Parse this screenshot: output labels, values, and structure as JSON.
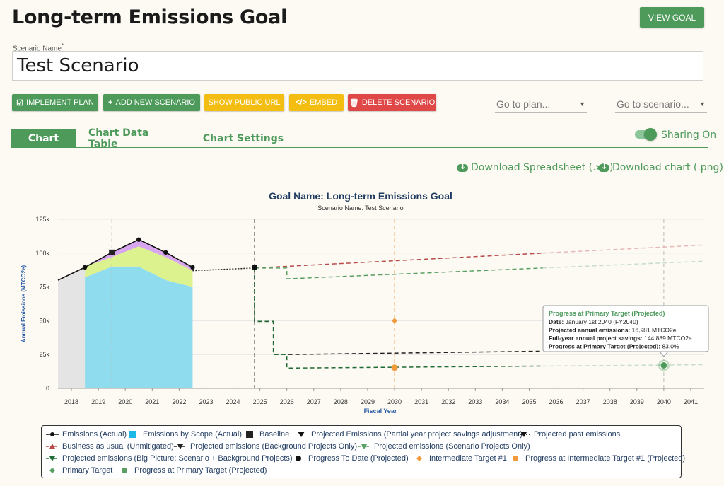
{
  "page": {
    "title": "Long-term Emissions Goal",
    "view_goal_label": "VIEW GOAL"
  },
  "scenario": {
    "name_label": "Scenario Name",
    "required_mark": "*",
    "name_value": "Test Scenario"
  },
  "actions": {
    "implement_plan": "IMPLEMENT PLAN",
    "add_scenario": "ADD NEW SCENARIO",
    "show_public_url": "SHOW PUBLIC URL",
    "embed": "EMBED",
    "delete_scenario": "DELETE SCENARIO"
  },
  "selects": {
    "plan_placeholder": "Go to plan...",
    "scenario_placeholder": "Go to scenario..."
  },
  "tabs": [
    "Chart",
    "Chart Data Table",
    "Chart Settings"
  ],
  "sharing": {
    "label": "Sharing On",
    "on": true
  },
  "downloads": {
    "spreadsheet": "Download Spreadsheet (.xls)",
    "chart": "Download chart (.png)"
  },
  "colors": {
    "brand_green": "#4d9a5b",
    "warning_yellow": "#f4bd12",
    "danger_red": "#e04747",
    "axis_blue": "#1f3a5f"
  },
  "chart_data": {
    "type": "area",
    "title": "Goal Name: Long-term Emissions Goal",
    "subtitle": "Scenario Name: Test Scenario",
    "ylabel": "Annual Emissions (MTCO2e)",
    "xlabel": "Fiscal Year",
    "ylim": [
      0,
      125000
    ],
    "xlim": [
      2017.5,
      2041.5
    ],
    "y_ticks": [
      "0",
      "25k",
      "50k",
      "75k",
      "100k",
      "125k"
    ],
    "x_ticks": [
      "2018",
      "2019",
      "2020",
      "2021",
      "2022",
      "2023",
      "2024",
      "2025",
      "2026",
      "2027",
      "2028",
      "2029",
      "2030",
      "2031",
      "2032",
      "2033",
      "2034",
      "2035",
      "2036",
      "2037",
      "2038",
      "2039",
      "2040",
      "2041"
    ],
    "series": [
      {
        "name": "Emissions (Actual)",
        "x": [
          2017.5,
          2018.5,
          2019.5,
          2020.5,
          2021.5,
          2022.5
        ],
        "values": [
          80000,
          89500,
          100500,
          110000,
          100500,
          89500
        ]
      },
      {
        "name": "Emissions by Scope (Actual)",
        "x": [
          2018.5,
          2019.5,
          2020.5,
          2021.5,
          2022.5
        ],
        "values": [
          82000,
          90000,
          90000,
          80000,
          75000
        ]
      },
      {
        "name": "Projected past emissions",
        "x": [
          2022.5,
          2024.8
        ],
        "values": [
          87000,
          89000
        ]
      },
      {
        "name": "Business as usual (Unmitigated)",
        "x": [
          2024.8,
          2041.5
        ],
        "values": [
          89000,
          106000
        ]
      },
      {
        "name": "Projected emissions (Background Projects Only)",
        "x": [
          2024.8,
          2025.8,
          2026,
          2041.5
        ],
        "values": [
          89000,
          25000,
          25000,
          28000
        ]
      },
      {
        "name": "Projected emissions (Scenario Projects Only)",
        "x": [
          2024.8,
          2026,
          2026,
          2041.5
        ],
        "values": [
          89000,
          89000,
          81000,
          94000
        ]
      },
      {
        "name": "Projected emissions (Big Picture: Scenario + Background Projects)",
        "x": [
          2024.8,
          2025.8,
          2026,
          2041.5
        ],
        "values": [
          89000,
          50000,
          15000,
          17500
        ]
      }
    ],
    "baseline": {
      "x": 2019.5,
      "value": 100500
    },
    "progress_to_date": {
      "x": 2024.8,
      "value": 89500
    },
    "intermediate_target": {
      "name": "Intermediate Target #1",
      "x": 2030,
      "value": 50000
    },
    "intermediate_progress": {
      "x": 2030,
      "value": 15300
    },
    "primary_target": {
      "x": 2040,
      "value": 17000
    },
    "tooltip": {
      "title": "Progress at Primary Target (Projected)",
      "rows": [
        {
          "label": "Date:",
          "value": "January 1st 2040 (FY2040)"
        },
        {
          "label": "Projected annual emissions:",
          "value": "16,981 MTCO2e"
        },
        {
          "label": "Full-year annual project savings:",
          "value": "144,889 MTCO2e"
        },
        {
          "label": "Progress at Primary Target (Projected):",
          "value": "83.0%"
        }
      ]
    }
  },
  "legend": [
    {
      "label": "Emissions (Actual)",
      "icon": "line-dot-black"
    },
    {
      "label": "Emissions by Scope (Actual)",
      "icon": "square-cyan"
    },
    {
      "label": "Baseline",
      "icon": "square-black"
    },
    {
      "label": "Projected Emissions (Partial year project savings adjustment)",
      "icon": "triangle-down-black"
    },
    {
      "label": "Projected past emissions",
      "icon": "dotted-triangle-black"
    },
    {
      "label": "Business as usual (Unmitigated)",
      "icon": "dash-triangle-red"
    },
    {
      "label": "Projected emissions (Background Projects Only)",
      "icon": "dash-triangle-black"
    },
    {
      "label": "Projected emissions (Scenario Projects Only)",
      "icon": "dash-triangle-green"
    },
    {
      "label": "Projected emissions (Big Picture: Scenario + Background Projects)",
      "icon": "dash-triangle-darkgreen"
    },
    {
      "label": "Progress To Date (Projected)",
      "icon": "circle-black"
    },
    {
      "label": "Intermediate Target #1",
      "icon": "diamond-orange"
    },
    {
      "label": "Progress at Intermediate Target #1 (Projected)",
      "icon": "circle-orange"
    },
    {
      "label": "Primary Target",
      "icon": "diamond-green"
    },
    {
      "label": "Progress at Primary Target (Projected)",
      "icon": "circle-green"
    }
  ]
}
